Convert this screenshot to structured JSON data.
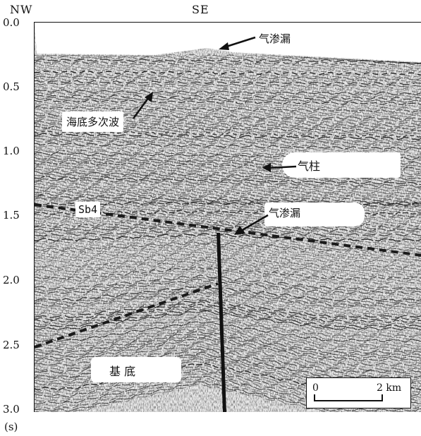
{
  "directions": {
    "left": "NW",
    "right": "SE"
  },
  "axis": {
    "ticks": [
      "0.0",
      "0.5",
      "1.0",
      "1.5",
      "2.0",
      "2.5",
      "3.0"
    ],
    "unit": "(s)"
  },
  "annotations": {
    "gas_seep_top": "气渗漏",
    "multiple": "海底多次波",
    "gas_chimney": "气柱",
    "horizon": "Sb4",
    "gas_seep_mid": "气渗漏",
    "basement": "基  底"
  },
  "scale_bar": {
    "start": "0",
    "end": "2 km"
  }
}
